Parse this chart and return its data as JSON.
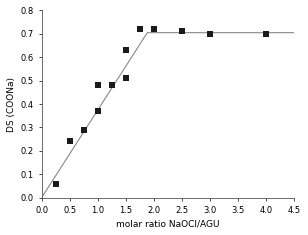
{
  "scatter_x": [
    0.25,
    0.5,
    0.75,
    1.0,
    1.0,
    1.25,
    1.5,
    1.5,
    1.75,
    2.0,
    2.5,
    3.0,
    4.0
  ],
  "scatter_y": [
    0.06,
    0.24,
    0.29,
    0.37,
    0.48,
    0.48,
    0.51,
    0.63,
    0.72,
    0.72,
    0.71,
    0.7,
    0.7
  ],
  "line_x": [
    0.0,
    1.88,
    4.5
  ],
  "line_y": [
    0.0,
    0.705,
    0.705
  ],
  "xlabel": "molar ratio NaOCl/AGU",
  "ylabel": "DS (COONa)",
  "xlim": [
    0.0,
    4.5
  ],
  "ylim": [
    0.0,
    0.8
  ],
  "xticks": [
    0.0,
    0.5,
    1.0,
    1.5,
    2.0,
    2.5,
    3.0,
    3.5,
    4.0,
    4.5
  ],
  "yticks": [
    0.0,
    0.1,
    0.2,
    0.3,
    0.4,
    0.5,
    0.6,
    0.7,
    0.8
  ],
  "marker_color": "#1a1a1a",
  "line_color": "#888888",
  "background_color": "#ffffff",
  "marker_size": 22,
  "line_width": 0.8,
  "label_fontsize": 6.5,
  "tick_fontsize": 6.0
}
